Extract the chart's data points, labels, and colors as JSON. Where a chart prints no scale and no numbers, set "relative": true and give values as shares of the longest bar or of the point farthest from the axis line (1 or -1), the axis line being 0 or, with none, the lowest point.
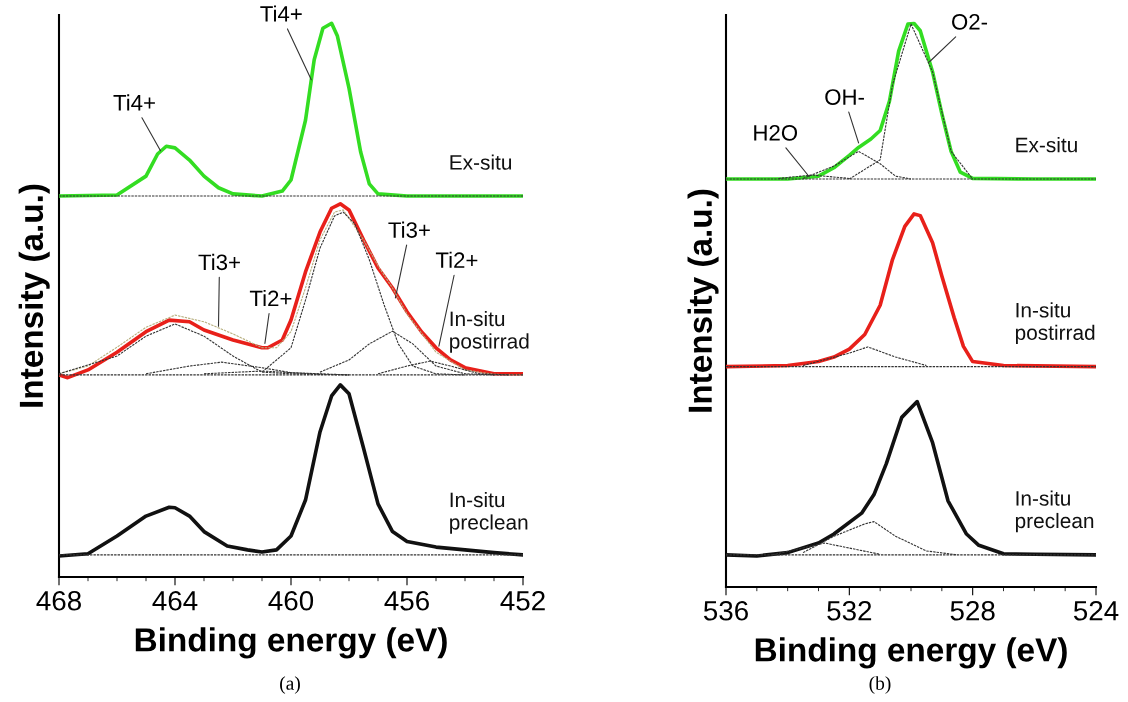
{
  "chart_data": [
    {
      "type": "line",
      "relative": true,
      "xlabel": "Binding energy (eV)",
      "ylabel": "Intensity (a.u.)",
      "xlim": [
        468,
        452
      ],
      "xticks": [
        468,
        464,
        460,
        456,
        452
      ],
      "legend": false,
      "grid": false,
      "annotations": [
        "(a)",
        {
          "text": "Ti4+",
          "x": 464.5,
          "y": 0.77
        },
        {
          "text": "Ti4+",
          "x": 459.3,
          "y": 0.898
        },
        {
          "text": "Ti3+",
          "x": 462.5,
          "y": 0.453
        },
        {
          "text": "Ti2+",
          "x": 460.9,
          "y": 0.422
        },
        {
          "text": "Ti3+",
          "x": 456.4,
          "y": 0.504
        },
        {
          "text": "Ti2+",
          "x": 454.9,
          "y": 0.417
        }
      ],
      "series": [
        {
          "name": "Ex-situ",
          "color": "#33dd22",
          "line_style": "solid",
          "x": [
            468,
            466,
            465,
            464.6,
            464.3,
            464,
            463.5,
            463,
            462.5,
            462,
            461,
            460.3,
            460,
            459.5,
            459.2,
            458.9,
            458.6,
            458.4,
            458,
            457.6,
            457.3,
            457,
            456,
            452
          ],
          "values": [
            0.688,
            0.69,
            0.724,
            0.764,
            0.778,
            0.775,
            0.753,
            0.724,
            0.703,
            0.692,
            0.688,
            0.697,
            0.717,
            0.825,
            0.934,
            0.991,
            1.0,
            0.977,
            0.883,
            0.768,
            0.71,
            0.692,
            0.688,
            0.688
          ]
        },
        {
          "color": "#333333",
          "line_style": "dashed",
          "x": [
            468,
            452
          ],
          "values": [
            0.688,
            0.688
          ]
        },
        {
          "color": "#b8b080",
          "line_style": "dashed",
          "x": [
            468,
            467,
            466,
            465,
            464,
            463,
            462,
            461,
            460.5,
            460,
            459.5,
            459,
            458.5,
            458.2,
            457.5,
            457,
            456.5,
            456,
            455,
            454,
            453,
            452
          ],
          "values": [
            0.367,
            0.381,
            0.415,
            0.451,
            0.473,
            0.461,
            0.439,
            0.414,
            0.414,
            0.443,
            0.522,
            0.609,
            0.659,
            0.663,
            0.609,
            0.562,
            0.522,
            0.475,
            0.406,
            0.374,
            0.366,
            0.365
          ]
        },
        {
          "color": "#333333",
          "line_style": "dashed",
          "x": [
            468,
            452
          ],
          "values": [
            0.365,
            0.365
          ]
        },
        {
          "color": "#333333",
          "line_style": "dashed",
          "x": [
            468,
            466,
            465,
            464,
            463,
            462,
            461,
            460,
            458
          ],
          "values": [
            0.367,
            0.399,
            0.435,
            0.457,
            0.435,
            0.399,
            0.37,
            0.367,
            0.365
          ]
        },
        {
          "color": "#333333",
          "line_style": "dashed",
          "x": [
            461,
            460,
            459.5,
            459,
            458.5,
            458.2,
            457.8,
            457.3,
            456.8,
            456.3,
            455.8,
            455,
            454
          ],
          "values": [
            0.37,
            0.414,
            0.5,
            0.594,
            0.652,
            0.659,
            0.638,
            0.573,
            0.493,
            0.421,
            0.381,
            0.367,
            0.365
          ]
        },
        {
          "color": "#333333",
          "line_style": "dashed",
          "x": [
            465,
            463.5,
            462.4,
            461,
            460,
            458
          ],
          "values": [
            0.367,
            0.381,
            0.388,
            0.378,
            0.369,
            0.365
          ]
        },
        {
          "color": "#333333",
          "line_style": "dashed",
          "x": [
            459,
            458,
            457.3,
            456.5,
            455.8,
            455,
            454,
            453
          ],
          "values": [
            0.37,
            0.392,
            0.421,
            0.444,
            0.421,
            0.381,
            0.367,
            0.365
          ]
        },
        {
          "color": "#333333",
          "line_style": "dashed",
          "x": [
            463,
            461,
            459
          ],
          "values": [
            0.367,
            0.372,
            0.366
          ]
        },
        {
          "color": "#333333",
          "line_style": "dashed",
          "x": [
            457,
            456,
            455.2,
            454.5,
            453.5,
            452.5
          ],
          "values": [
            0.367,
            0.381,
            0.39,
            0.381,
            0.367,
            0.365
          ]
        },
        {
          "name": "In-situ\npostirrad",
          "color": "#e8201a",
          "line_style": "solid",
          "x": [
            468,
            467.7,
            467,
            466,
            465,
            464.2,
            463.5,
            463,
            462,
            461,
            460.8,
            460.3,
            460,
            459.5,
            459,
            458.6,
            458.3,
            458,
            457.5,
            457,
            456.5,
            456,
            455.5,
            455,
            454.5,
            454,
            453,
            452
          ],
          "values": [
            0.365,
            0.36,
            0.374,
            0.406,
            0.443,
            0.464,
            0.461,
            0.446,
            0.428,
            0.414,
            0.414,
            0.428,
            0.464,
            0.551,
            0.623,
            0.666,
            0.674,
            0.663,
            0.609,
            0.558,
            0.522,
            0.479,
            0.443,
            0.414,
            0.392,
            0.378,
            0.367,
            0.367
          ]
        },
        {
          "color": "#333333",
          "line_style": "dashed",
          "x": [
            468,
            452
          ],
          "values": [
            0.04,
            0.04
          ]
        },
        {
          "name": "In-situ\npreclean",
          "color": "#111111",
          "line_style": "solid",
          "x": [
            468,
            467,
            466,
            465,
            464.2,
            464,
            463.5,
            463,
            462.2,
            461.5,
            461,
            460.5,
            460,
            459.5,
            459,
            458.6,
            458.3,
            458,
            457.5,
            457,
            456.5,
            456,
            455,
            454,
            453,
            452
          ],
          "values": [
            0.038,
            0.042,
            0.074,
            0.11,
            0.126,
            0.125,
            0.11,
            0.082,
            0.056,
            0.049,
            0.045,
            0.049,
            0.074,
            0.139,
            0.262,
            0.327,
            0.347,
            0.331,
            0.233,
            0.132,
            0.082,
            0.064,
            0.054,
            0.049,
            0.044,
            0.04
          ]
        }
      ]
    },
    {
      "type": "line",
      "relative": true,
      "xlabel": "Binding energy (eV)",
      "ylabel": "Intensity (a.u.)",
      "xlim": [
        536,
        524
      ],
      "xticks": [
        536,
        532,
        528,
        524
      ],
      "legend": false,
      "grid": false,
      "annotations": [
        "(b)",
        {
          "text": "H2O",
          "x": 533.3,
          "y": 0.728
        },
        {
          "text": "OH-",
          "x": 531.7,
          "y": 0.788
        },
        {
          "text": "O2-",
          "x": 529.4,
          "y": 0.932
        }
      ],
      "series": [
        {
          "color": "#333333",
          "line_style": "dashed",
          "x": [
            536,
            524
          ],
          "values": [
            0.724,
            0.724
          ]
        },
        {
          "color": "#333333",
          "line_style": "dashed",
          "x": [
            534.3,
            533.2,
            532
          ],
          "values": [
            0.725,
            0.731,
            0.725
          ]
        },
        {
          "color": "#333333",
          "line_style": "dashed",
          "x": [
            533.5,
            532.5,
            531.7,
            531,
            530.5,
            530
          ],
          "values": [
            0.725,
            0.747,
            0.773,
            0.751,
            0.729,
            0.724
          ]
        },
        {
          "color": "#333333",
          "line_style": "dashed",
          "x": [
            532,
            531,
            530.6,
            530,
            529.3,
            528.7,
            528
          ],
          "values": [
            0.724,
            0.758,
            0.891,
            0.999,
            0.914,
            0.773,
            0.724
          ]
        },
        {
          "name": "Ex-situ",
          "color": "#33dd22",
          "line_style": "solid",
          "x": [
            536,
            534,
            533,
            532.5,
            532,
            531.7,
            531.3,
            531,
            530.7,
            530.4,
            530.1,
            529.9,
            529.7,
            529.3,
            529,
            528.7,
            528.4,
            528,
            526,
            524
          ],
          "values": [
            0.724,
            0.724,
            0.729,
            0.744,
            0.766,
            0.78,
            0.795,
            0.81,
            0.862,
            0.951,
            0.999,
            1.0,
            0.987,
            0.914,
            0.84,
            0.773,
            0.736,
            0.725,
            0.724,
            0.724
          ]
        },
        {
          "color": "#333333",
          "line_style": "dashed",
          "x": [
            536,
            524
          ],
          "values": [
            0.391,
            0.391
          ]
        },
        {
          "color": "#333333",
          "line_style": "dashed",
          "x": [
            533.5,
            532,
            531.4,
            530.5,
            529.5
          ],
          "values": [
            0.393,
            0.415,
            0.426,
            0.408,
            0.393
          ]
        },
        {
          "name": "In-situ\npostirrad",
          "color": "#e8201a",
          "line_style": "solid",
          "x": [
            536,
            534,
            533,
            532.5,
            532,
            531.5,
            531,
            530.6,
            530.2,
            529.9,
            529.7,
            529.3,
            529,
            528.6,
            528.3,
            528,
            527,
            524
          ],
          "values": [
            0.391,
            0.393,
            0.4,
            0.408,
            0.422,
            0.448,
            0.5,
            0.581,
            0.64,
            0.662,
            0.659,
            0.611,
            0.552,
            0.478,
            0.427,
            0.4,
            0.393,
            0.391
          ]
        },
        {
          "color": "#333333",
          "line_style": "dashed",
          "x": [
            536,
            524
          ],
          "values": [
            0.057,
            0.057
          ]
        },
        {
          "color": "#333333",
          "line_style": "dashed",
          "x": [
            534.5,
            532.8,
            531
          ],
          "values": [
            0.057,
            0.078,
            0.058
          ]
        },
        {
          "color": "#333333",
          "line_style": "dashed",
          "x": [
            533.5,
            532.5,
            531.5,
            531.2,
            530.5,
            529.5,
            528.5
          ],
          "values": [
            0.061,
            0.09,
            0.112,
            0.116,
            0.09,
            0.064,
            0.057
          ]
        },
        {
          "name": "In-situ\npreclean",
          "color": "#111111",
          "line_style": "solid",
          "x": [
            536,
            535,
            534,
            533,
            532.5,
            531.6,
            531.2,
            530.8,
            530.3,
            529.8,
            529.3,
            528.8,
            528.2,
            527.8,
            527,
            526,
            524
          ],
          "values": [
            0.057,
            0.055,
            0.061,
            0.078,
            0.094,
            0.131,
            0.164,
            0.219,
            0.301,
            0.329,
            0.256,
            0.153,
            0.094,
            0.074,
            0.059,
            0.058,
            0.057
          ]
        }
      ]
    }
  ]
}
